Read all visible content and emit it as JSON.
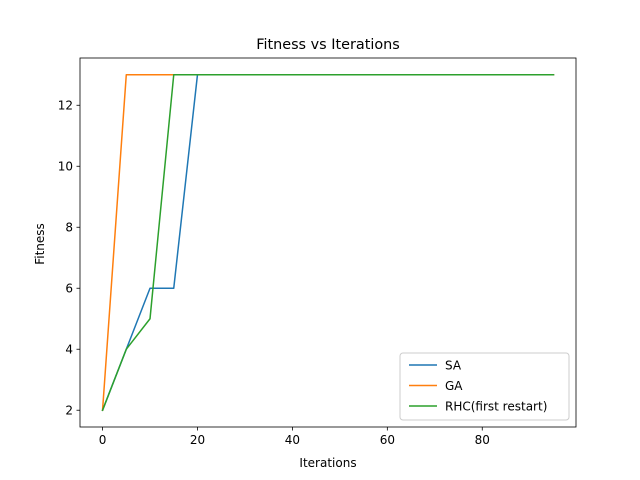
{
  "chart_data": {
    "type": "line",
    "title": "Fitness vs Iterations",
    "xlabel": "Iterations",
    "ylabel": "Fitness",
    "xlim": [
      -4.75,
      99.75
    ],
    "ylim": [
      1.45,
      13.55
    ],
    "x_ticks": [
      0,
      20,
      40,
      60,
      80
    ],
    "y_ticks": [
      2,
      4,
      6,
      8,
      10,
      12
    ],
    "grid": false,
    "legend_position": "lower-right",
    "series": [
      {
        "name": "SA",
        "color": "#1f77b4",
        "x": [
          0,
          5,
          10,
          15,
          20,
          25,
          30,
          35,
          40,
          45,
          50,
          55,
          60,
          65,
          70,
          75,
          80,
          85,
          90,
          95
        ],
        "y": [
          2,
          4,
          6,
          6,
          13,
          13,
          13,
          13,
          13,
          13,
          13,
          13,
          13,
          13,
          13,
          13,
          13,
          13,
          13,
          13
        ]
      },
      {
        "name": "GA",
        "color": "#ff7f0e",
        "x": [
          0,
          5,
          10,
          15,
          20,
          25,
          30,
          35,
          40,
          45,
          50,
          55,
          60,
          65,
          70,
          75,
          80,
          85,
          90,
          95
        ],
        "y": [
          2,
          13,
          13,
          13,
          13,
          13,
          13,
          13,
          13,
          13,
          13,
          13,
          13,
          13,
          13,
          13,
          13,
          13,
          13,
          13
        ]
      },
      {
        "name": "RHC(first restart)",
        "color": "#2ca02c",
        "x": [
          0,
          5,
          10,
          15,
          20,
          25,
          30,
          35,
          40,
          45,
          50,
          55,
          60,
          65,
          70,
          75,
          80,
          85,
          90,
          95
        ],
        "y": [
          2,
          4,
          5,
          13,
          13,
          13,
          13,
          13,
          13,
          13,
          13,
          13,
          13,
          13,
          13,
          13,
          13,
          13,
          13,
          13
        ]
      }
    ]
  }
}
